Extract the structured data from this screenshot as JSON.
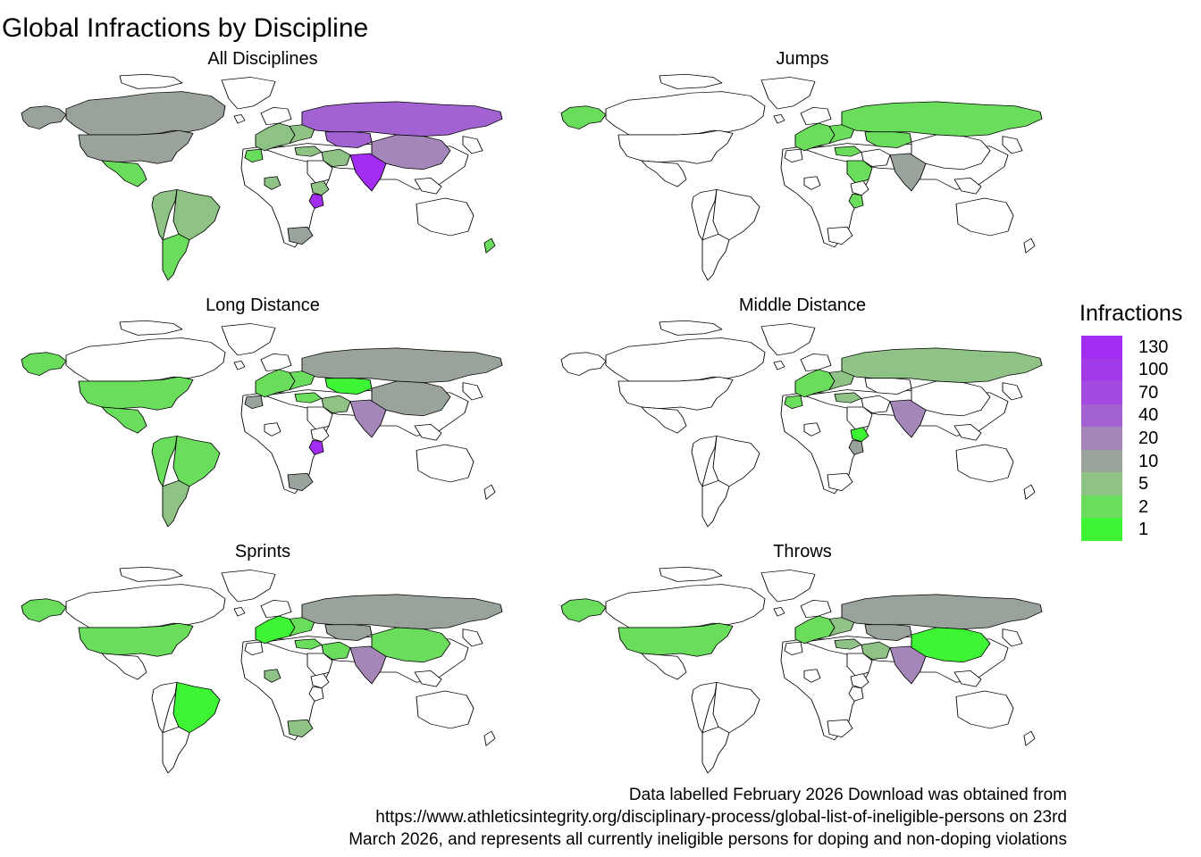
{
  "title": "Global Infractions by Discipline",
  "legend": {
    "title": "Infractions",
    "levels": [
      "130",
      "100",
      "70",
      "40",
      "20",
      "10",
      "5",
      "2",
      "1"
    ],
    "colors": [
      "#a32cf1",
      "#a33aea",
      "#a34ae0",
      "#a362d2",
      "#a487b8",
      "#9aa39b",
      "#8fc386",
      "#6bdd5d",
      "#3df534"
    ]
  },
  "palette": {
    "none": "#ffffff",
    "v1": "#3df534",
    "v2": "#6bdd5d",
    "v5": "#8fc386",
    "v10": "#9aa39b",
    "v20": "#a487b8",
    "v40": "#a362d2",
    "v100": "#a33aea",
    "v130": "#a32cf1"
  },
  "panels": [
    {
      "title": "All Disciplines",
      "fills": {
        "canada": "v10",
        "usa": "v10",
        "mexico": "v2",
        "brazil": "v5",
        "andes": "v5",
        "argentina": "v2",
        "russia": "v40",
        "kazakhstan": "v40",
        "china": "v20",
        "india": "v130",
        "kenya": "v130",
        "morocco": "v2",
        "nigeria": "v5",
        "south_africa": "v10",
        "turkey": "v5",
        "iran": "v5",
        "ukraine": "v5",
        "europe": "v5",
        "australia": "none",
        "newzealand": "v2",
        "alaska": "v10",
        "saudi": "none",
        "ethiopia": "v5",
        "greenland": "none"
      }
    },
    {
      "title": "Jumps",
      "fills": {
        "canada": "none",
        "usa": "none",
        "mexico": "none",
        "brazil": "none",
        "andes": "none",
        "argentina": "none",
        "russia": "v2",
        "kazakhstan": "v2",
        "china": "none",
        "india": "v10",
        "kenya": "v2",
        "morocco": "none",
        "nigeria": "none",
        "south_africa": "none",
        "turkey": "v2",
        "iran": "none",
        "ukraine": "v2",
        "europe": "v2",
        "australia": "none",
        "newzealand": "none",
        "alaska": "v2",
        "saudi": "v2",
        "ethiopia": "none",
        "greenland": "none"
      }
    },
    {
      "title": "Long Distance",
      "fills": {
        "canada": "none",
        "usa": "v2",
        "mexico": "v2",
        "brazil": "v2",
        "andes": "v2",
        "argentina": "v5",
        "russia": "v10",
        "kazakhstan": "v1",
        "china": "v10",
        "india": "v20",
        "kenya": "v130",
        "morocco": "v10",
        "nigeria": "none",
        "south_africa": "v10",
        "turkey": "v2",
        "iran": "v5",
        "ukraine": "v2",
        "europe": "v2",
        "australia": "none",
        "newzealand": "none",
        "alaska": "v2",
        "saudi": "none",
        "ethiopia": "none",
        "greenland": "none"
      }
    },
    {
      "title": "Middle Distance",
      "fills": {
        "canada": "none",
        "usa": "none",
        "mexico": "none",
        "brazil": "none",
        "andes": "none",
        "argentina": "none",
        "russia": "v5",
        "kazakhstan": "none",
        "china": "none",
        "india": "v20",
        "kenya": "v10",
        "morocco": "v2",
        "nigeria": "none",
        "south_africa": "none",
        "turkey": "v5",
        "iran": "none",
        "ukraine": "v5",
        "europe": "v2",
        "australia": "none",
        "newzealand": "none",
        "alaska": "none",
        "saudi": "none",
        "ethiopia": "v1",
        "greenland": "none"
      }
    },
    {
      "title": "Sprints",
      "fills": {
        "canada": "none",
        "usa": "v2",
        "mexico": "none",
        "brazil": "v1",
        "andes": "none",
        "argentina": "none",
        "russia": "v10",
        "kazakhstan": "v10",
        "china": "v2",
        "india": "v20",
        "kenya": "none",
        "morocco": "none",
        "nigeria": "v5",
        "south_africa": "v5",
        "turkey": "v2",
        "iran": "v2",
        "ukraine": "v2",
        "europe": "v1",
        "australia": "none",
        "newzealand": "none",
        "alaska": "v2",
        "saudi": "none",
        "ethiopia": "none",
        "greenland": "none"
      }
    },
    {
      "title": "Throws",
      "fills": {
        "canada": "none",
        "usa": "v2",
        "mexico": "none",
        "brazil": "none",
        "andes": "none",
        "argentina": "none",
        "russia": "v10",
        "kazakhstan": "v10",
        "china": "v1",
        "india": "v20",
        "kenya": "none",
        "morocco": "none",
        "nigeria": "none",
        "south_africa": "none",
        "turkey": "v5",
        "iran": "v5",
        "ukraine": "v5",
        "europe": "v2",
        "australia": "none",
        "newzealand": "none",
        "alaska": "v2",
        "saudi": "none",
        "ethiopia": "none",
        "greenland": "none"
      }
    }
  ],
  "caption": [
    "Data labelled February 2026 Download was obtained from",
    "https://www.athleticsintegrity.org/disciplinary-process/global-list-of-ineligible-persons on 23rd",
    "March 2026, and represents all currently ineligible persons for doping and non-doping violations"
  ]
}
